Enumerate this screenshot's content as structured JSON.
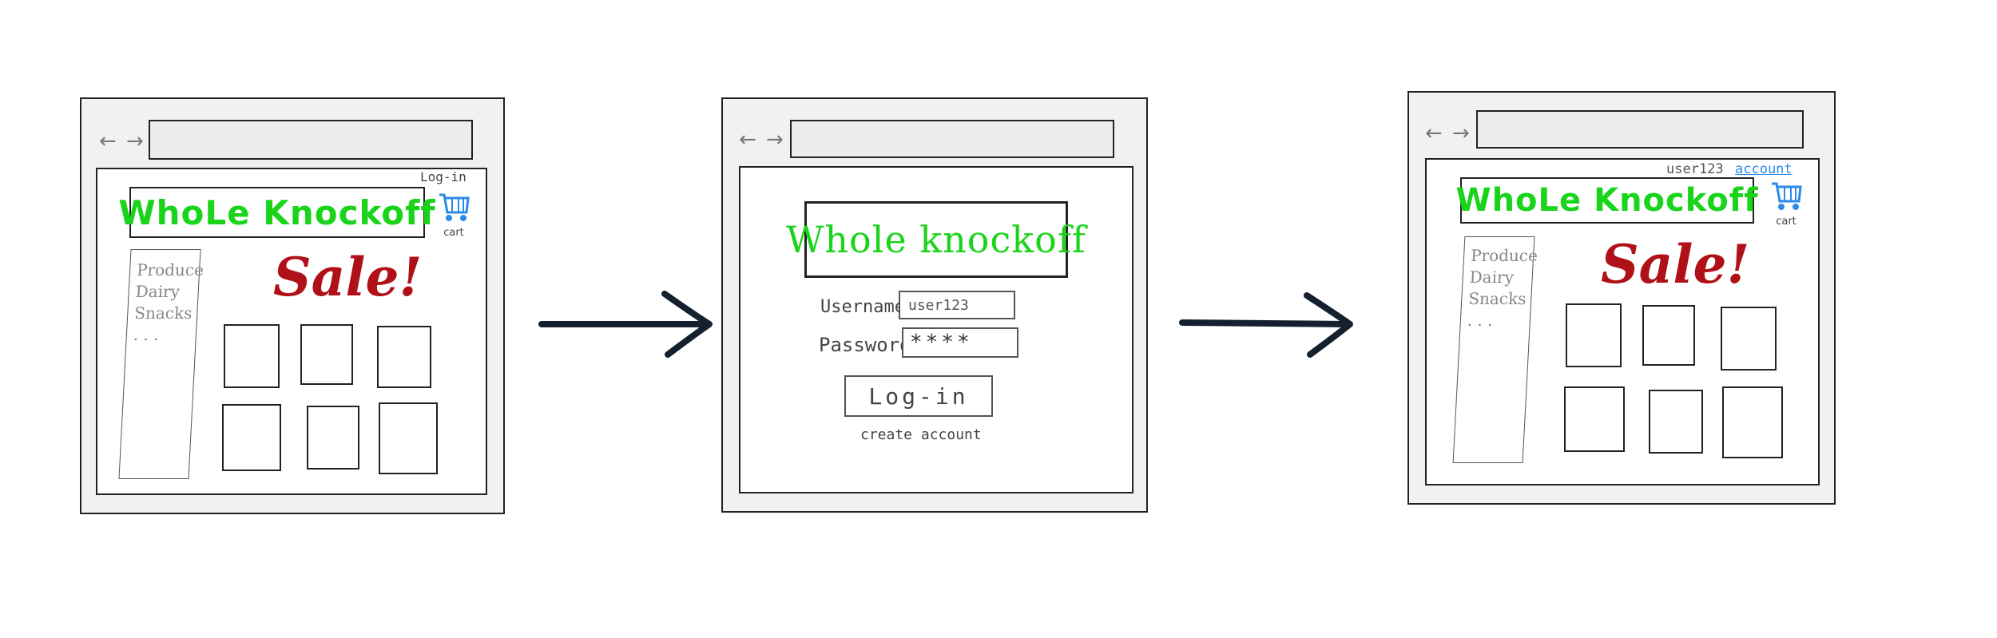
{
  "panels": [
    {
      "nav": "← →",
      "top_link": "Log-in",
      "logo": "WhoLe Knockoff",
      "cart_label": "cart",
      "categories": [
        "Produce",
        "Dairy",
        "Snacks",
        ". . ."
      ],
      "sale": "Sale!"
    },
    {
      "nav": "← →",
      "logo": "Whole knockoff",
      "username_label": "Username",
      "username_value": "user123",
      "password_label": "Password",
      "password_value": "****",
      "login_button": "Log-in",
      "create_account": "create account"
    },
    {
      "nav": "← →",
      "user": "user123",
      "account_link": "account",
      "logo": "WhoLe Knockoff",
      "cart_label": "cart",
      "categories": [
        "Produce",
        "Dairy",
        "Snacks",
        ". . ."
      ],
      "sale": "Sale!"
    }
  ],
  "colors": {
    "logo": "#19d41a",
    "sale": "#b01018",
    "cart": "#2b8be8",
    "arrow": "#14202e",
    "account_link": "#2b8be8"
  }
}
